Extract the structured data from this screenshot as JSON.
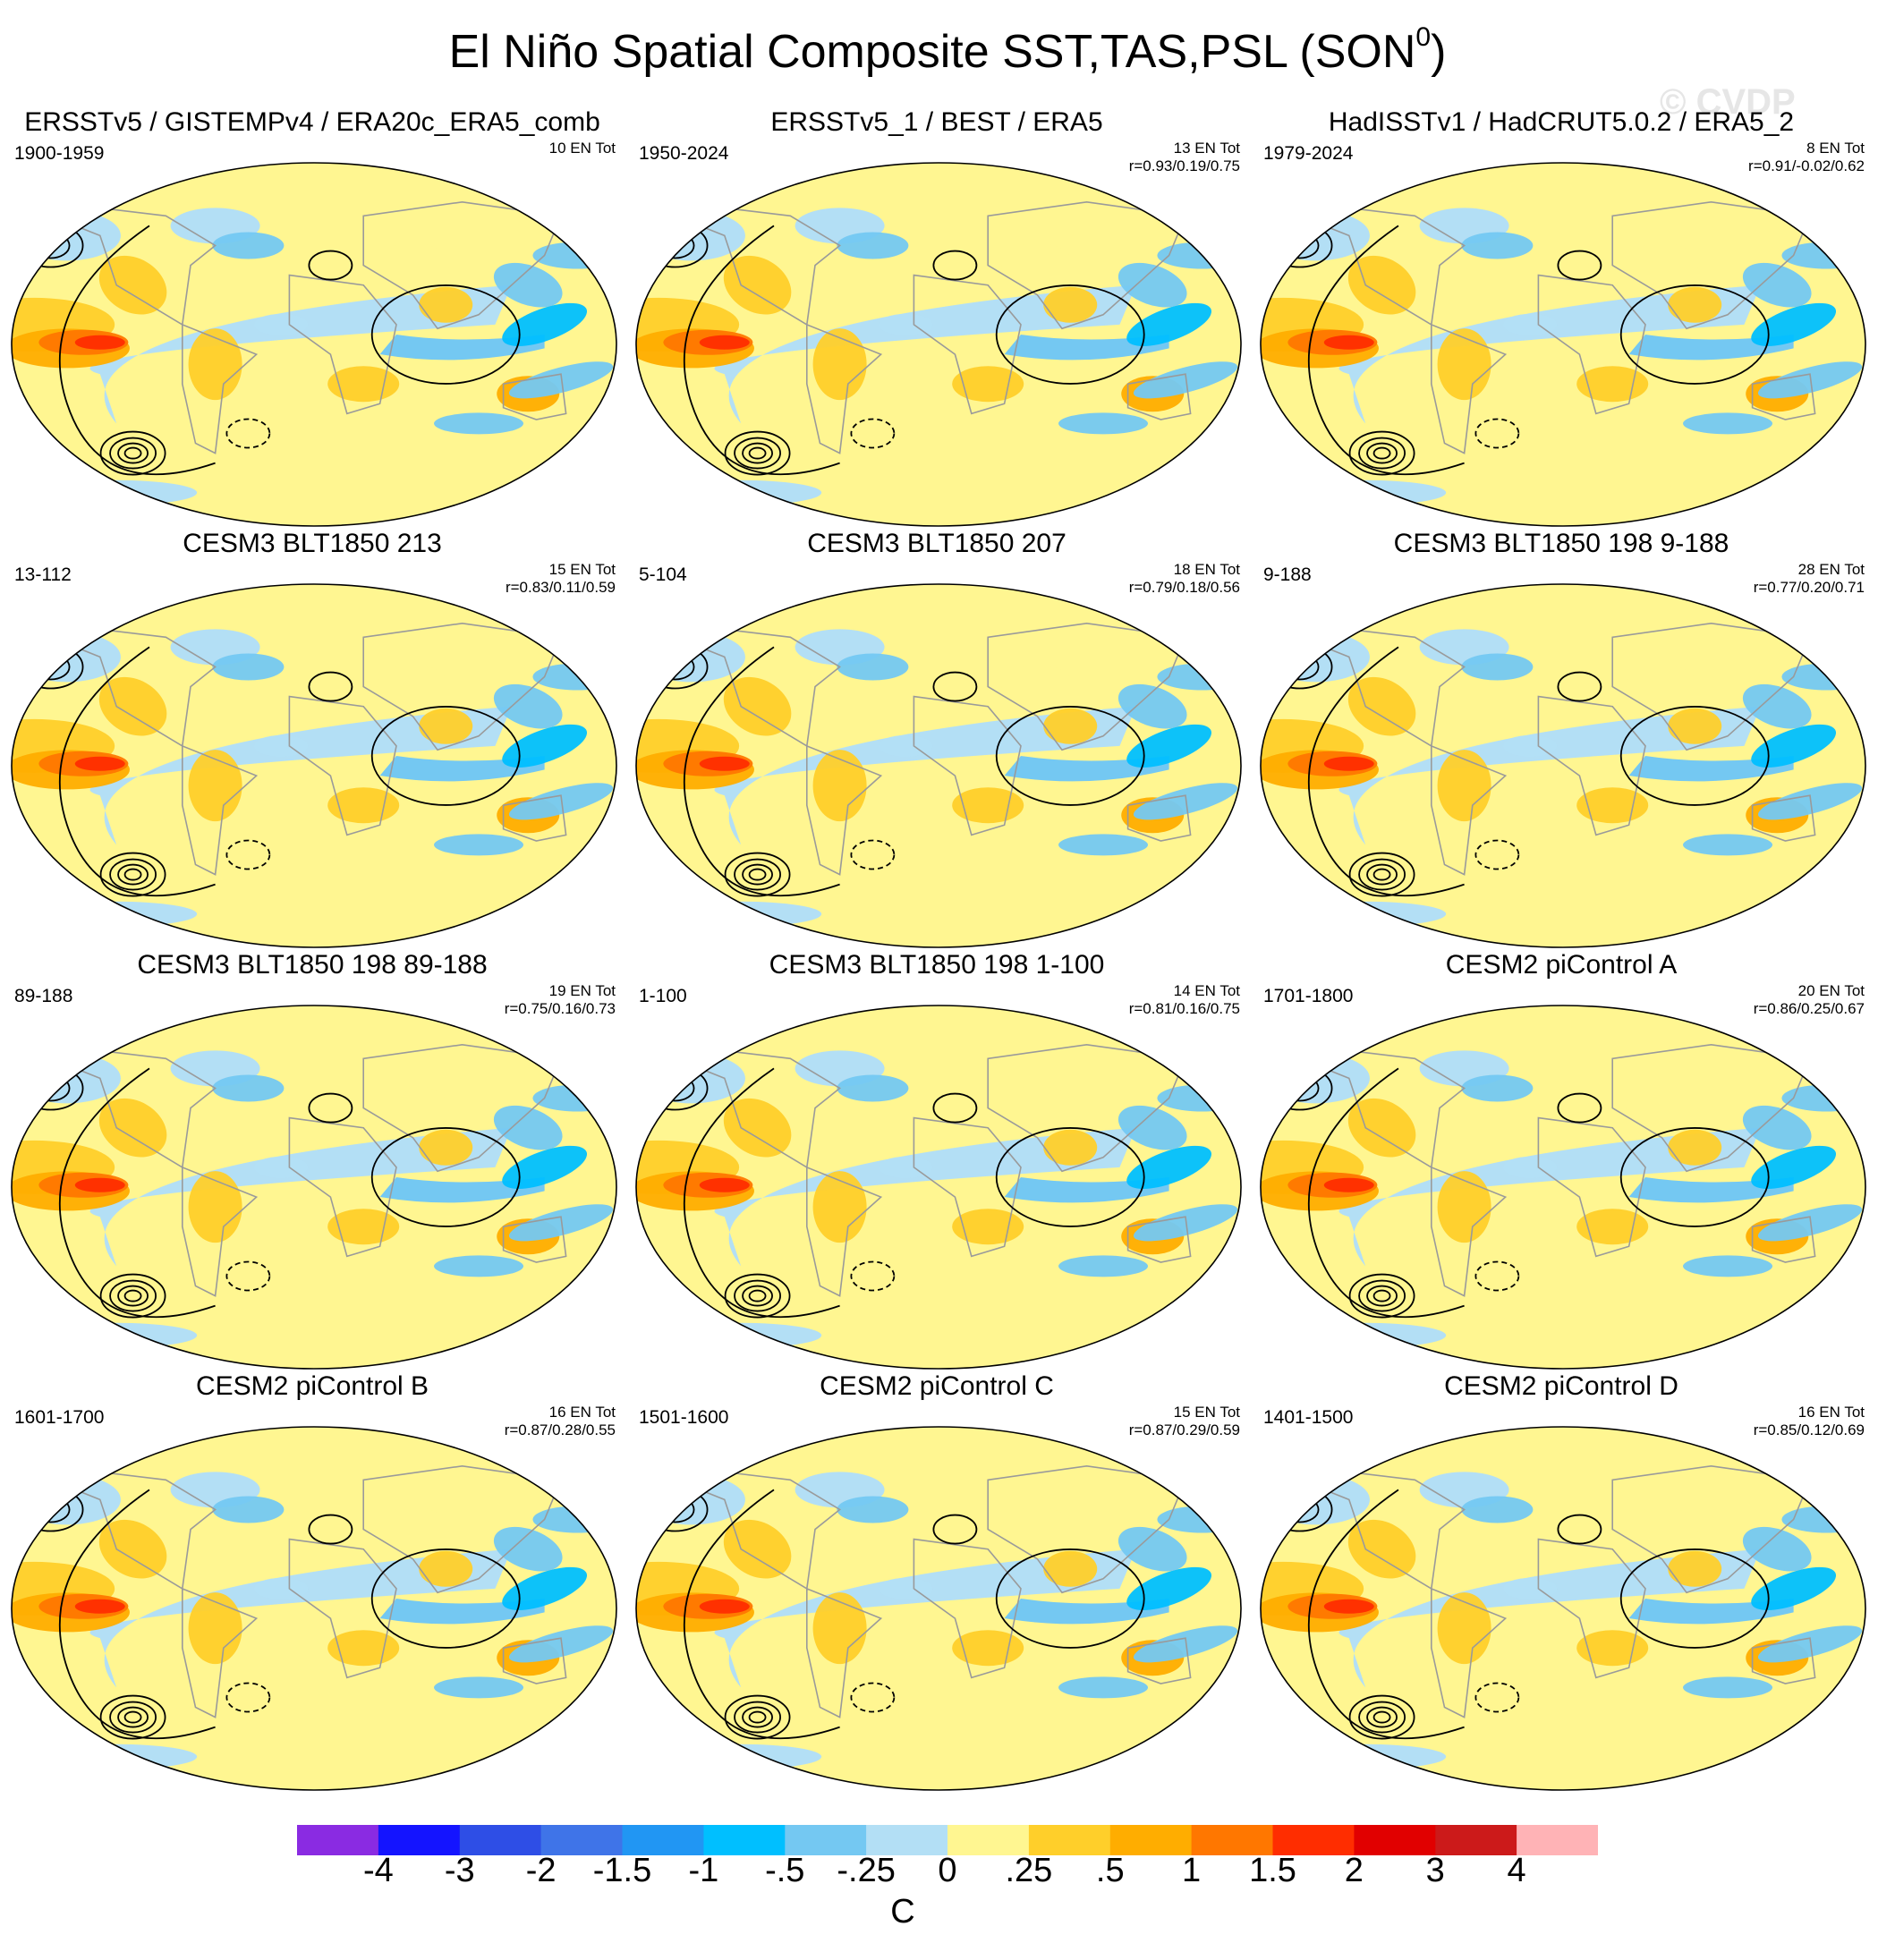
{
  "figure": {
    "title": "El Niño Spatial Composite SST,TAS,PSL (SON",
    "title_sup": "0",
    "title_close": ")",
    "watermark": "© CVDP"
  },
  "chart_data": {
    "type": "heatmap",
    "variables": [
      "SST",
      "TAS",
      "PSL"
    ],
    "season": "SON",
    "units": "C",
    "colorbar": {
      "labels": [
        "-4",
        "-3",
        "-2",
        "-1.5",
        "-1",
        "-.5",
        "-.25",
        "0",
        ".25",
        ".5",
        "1",
        "1.5",
        "2",
        "3",
        "4"
      ],
      "colors": [
        "#8a2be2",
        "#1414ff",
        "#2e4ee6",
        "#3f74e8",
        "#2196f3",
        "#00bfff",
        "#74c8f2",
        "#b3dff5",
        "#fff691",
        "#ffcf2a",
        "#ffad00",
        "#ff7700",
        "#ff2d00",
        "#e10000",
        "#cc1a1a",
        "#ffb3b6"
      ]
    },
    "panels": [
      {
        "title": "ERSSTv5 / GISTEMPv4 / ERA20c_ERA5_comb",
        "years": "1900-1959",
        "events": "10 EN Tot",
        "r": ""
      },
      {
        "title": "ERSSTv5_1 / BEST / ERA5",
        "years": "1950-2024",
        "events": "13 EN Tot",
        "r": "r=0.93/0.19/0.75"
      },
      {
        "title": "HadISSTv1 / HadCRUT5.0.2 / ERA5_2",
        "years": "1979-2024",
        "events": "8 EN Tot",
        "r": "r=0.91/-0.02/0.62"
      },
      {
        "title": "CESM3 BLT1850 213",
        "years": "13-112",
        "events": "15 EN Tot",
        "r": "r=0.83/0.11/0.59"
      },
      {
        "title": "CESM3 BLT1850 207",
        "years": "5-104",
        "events": "18 EN Tot",
        "r": "r=0.79/0.18/0.56"
      },
      {
        "title": "CESM3 BLT1850 198 9-188",
        "years": "9-188",
        "events": "28 EN Tot",
        "r": "r=0.77/0.20/0.71"
      },
      {
        "title": "CESM3 BLT1850 198 89-188",
        "years": "89-188",
        "events": "19 EN Tot",
        "r": "r=0.75/0.16/0.73"
      },
      {
        "title": "CESM3 BLT1850 198 1-100",
        "years": "1-100",
        "events": "14 EN Tot",
        "r": "r=0.81/0.16/0.75"
      },
      {
        "title": "CESM2 piControl A",
        "years": "1701-1800",
        "events": "20 EN Tot",
        "r": "r=0.86/0.25/0.67"
      },
      {
        "title": "CESM2 piControl B",
        "years": "1601-1700",
        "events": "16 EN Tot",
        "r": "r=0.87/0.28/0.55"
      },
      {
        "title": "CESM2 piControl C",
        "years": "1501-1600",
        "events": "15 EN Tot",
        "r": "r=0.87/0.29/0.59"
      },
      {
        "title": "CESM2 piControl D",
        "years": "1401-1500",
        "events": "16 EN Tot",
        "r": "r=0.85/0.12/0.69"
      }
    ]
  }
}
